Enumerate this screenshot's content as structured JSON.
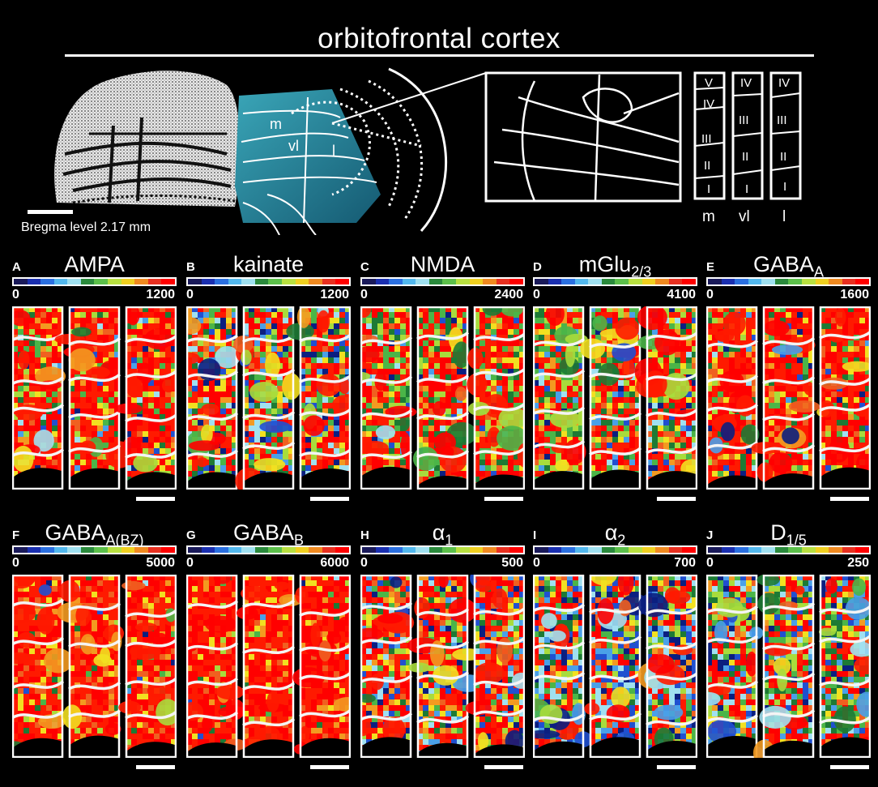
{
  "title": "orbitofrontal cortex",
  "bregma_label": "Bregma level 2.17 mm",
  "region_labels": {
    "m": "m",
    "vl": "vl",
    "l": "l"
  },
  "columns": [
    {
      "name": "m",
      "layers": [
        "V",
        "IV",
        "III",
        "II",
        "I"
      ]
    },
    {
      "name": "vl",
      "layers": [
        "IV",
        "III",
        "II",
        "I"
      ]
    },
    {
      "name": "l",
      "layers": [
        "IV",
        "III",
        "II",
        "I"
      ]
    }
  ],
  "colorscale": [
    "#1a1a5a",
    "#1a2fb0",
    "#2a6fe0",
    "#52b8ee",
    "#9fe0f0",
    "#2a8a3c",
    "#5cc04a",
    "#b8e040",
    "#f0d020",
    "#f08a20",
    "#e83020",
    "#ff0000"
  ],
  "panels": [
    {
      "letter": "A",
      "name": "AMPA",
      "sub": "",
      "min": "0",
      "max": "1200",
      "mix": [
        0.08,
        0.15,
        0.17,
        0.6
      ]
    },
    {
      "letter": "B",
      "name": "kainate",
      "sub": "",
      "min": "0",
      "max": "1200",
      "mix": [
        0.22,
        0.25,
        0.18,
        0.35
      ]
    },
    {
      "letter": "C",
      "name": "NMDA",
      "sub": "",
      "min": "0",
      "max": "2400",
      "mix": [
        0.06,
        0.3,
        0.14,
        0.5
      ]
    },
    {
      "letter": "D",
      "name": "mGlu",
      "sub": "2/3",
      "min": "0",
      "max": "4100",
      "mix": [
        0.12,
        0.33,
        0.2,
        0.35
      ]
    },
    {
      "letter": "E",
      "name": "GABA",
      "sub": "A",
      "min": "0",
      "max": "1600",
      "mix": [
        0.05,
        0.12,
        0.18,
        0.65
      ]
    },
    {
      "letter": "F",
      "name": "GABA",
      "sub": "A(BZ)",
      "min": "0",
      "max": "5000",
      "mix": [
        0.02,
        0.05,
        0.25,
        0.68
      ]
    },
    {
      "letter": "G",
      "name": "GABA",
      "sub": "B",
      "min": "0",
      "max": "6000",
      "mix": [
        0.01,
        0.03,
        0.16,
        0.8
      ]
    },
    {
      "letter": "H",
      "name": "α",
      "sub": "1",
      "min": "0",
      "max": "500",
      "mix": [
        0.22,
        0.15,
        0.18,
        0.45
      ]
    },
    {
      "letter": "I",
      "name": "α",
      "sub": "2",
      "min": "0",
      "max": "700",
      "mix": [
        0.4,
        0.18,
        0.17,
        0.25
      ]
    },
    {
      "letter": "J",
      "name": "D",
      "sub": "1/5",
      "min": "0",
      "max": "250",
      "mix": [
        0.25,
        0.3,
        0.15,
        0.3
      ]
    }
  ]
}
